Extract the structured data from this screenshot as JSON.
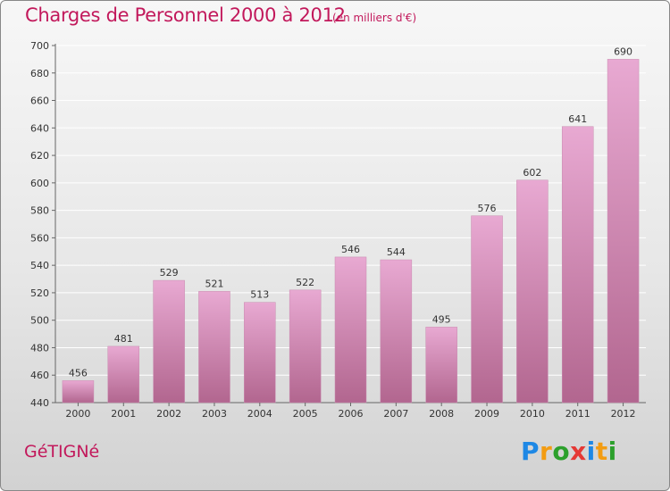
{
  "header": {
    "title": "Charges de Personnel 2000 à 2012",
    "subtitle": "(en milliers d'€)"
  },
  "footer": {
    "city": "GéTIGNé",
    "logo_text": "Proxiti",
    "logo_letters": [
      {
        "ch": "P",
        "color": "#1e88e5"
      },
      {
        "ch": "r",
        "color": "#f39c12"
      },
      {
        "ch": "o",
        "color": "#2ca02c"
      },
      {
        "ch": "x",
        "color": "#e53935"
      },
      {
        "ch": "i",
        "color": "#1e88e5"
      },
      {
        "ch": "t",
        "color": "#f39c12"
      },
      {
        "ch": "i",
        "color": "#2ca02c"
      }
    ]
  },
  "colors": {
    "bar_top": "#e8a9d2",
    "bar_bottom": "#b2668f",
    "grid": "#ffffff",
    "axis": "#666666",
    "title": "#c2185b"
  },
  "chart_data": {
    "type": "bar",
    "title": "Charges de Personnel 2000 à 2012",
    "subtitle": "(en milliers d'€)",
    "categories": [
      "2000",
      "2001",
      "2002",
      "2003",
      "2004",
      "2005",
      "2006",
      "2007",
      "2008",
      "2009",
      "2010",
      "2011",
      "2012"
    ],
    "values": [
      456,
      481,
      529,
      521,
      513,
      522,
      546,
      544,
      495,
      576,
      602,
      641,
      690
    ],
    "ylim": [
      440,
      700
    ],
    "yticks": [
      440,
      460,
      480,
      500,
      520,
      540,
      560,
      580,
      600,
      620,
      640,
      660,
      680,
      700
    ],
    "grid": true,
    "data_labels": true
  }
}
